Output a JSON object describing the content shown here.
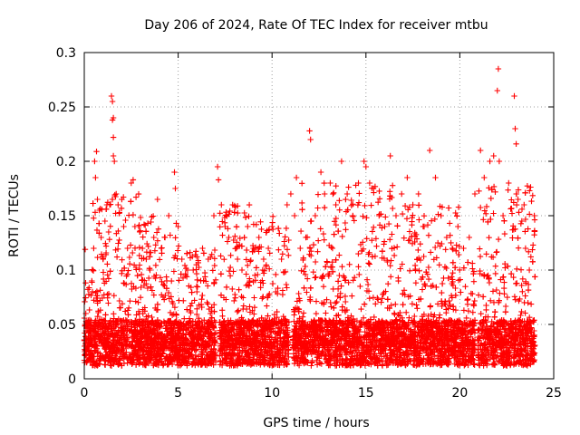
{
  "chart_data": {
    "type": "scatter",
    "title": "Day 206 of 2024, Rate Of TEC Index for receiver mtbu",
    "xlabel": "GPS time / hours",
    "ylabel": "ROTI / TECUs",
    "xlim": [
      0,
      25
    ],
    "ylim": [
      0,
      0.3
    ],
    "xticks": [
      0,
      5,
      10,
      15,
      20,
      25
    ],
    "xtick_labels": [
      "0",
      "5",
      "10",
      "15",
      "20",
      "25"
    ],
    "yticks": [
      0,
      0.05,
      0.1,
      0.15,
      0.2,
      0.25,
      0.3
    ],
    "ytick_labels": [
      "0",
      "0.05",
      "0.1",
      "0.15",
      "0.2",
      "0.25",
      "0.3"
    ],
    "grid": true,
    "marker": "plus",
    "series_color": "#ff0000",
    "series": [
      {
        "points": [
          [
            0.05,
            0.119
          ],
          [
            0.1,
            0.022
          ],
          [
            0.2,
            0.035
          ],
          [
            0.3,
            0.05
          ],
          [
            0.4,
            0.09
          ],
          [
            0.5,
            0.12
          ],
          [
            0.55,
            0.2
          ],
          [
            0.6,
            0.185
          ],
          [
            0.65,
            0.209
          ],
          [
            0.7,
            0.165
          ],
          [
            0.8,
            0.155
          ],
          [
            0.9,
            0.13
          ],
          [
            1.0,
            0.11
          ],
          [
            1.1,
            0.145
          ],
          [
            1.2,
            0.16
          ],
          [
            1.3,
            0.135
          ],
          [
            1.45,
            0.26
          ],
          [
            1.5,
            0.255
          ],
          [
            1.5,
            0.238
          ],
          [
            1.55,
            0.24
          ],
          [
            1.55,
            0.222
          ],
          [
            1.55,
            0.205
          ],
          [
            1.6,
            0.2
          ],
          [
            1.7,
            0.17
          ],
          [
            1.8,
            0.16
          ],
          [
            2.0,
            0.165
          ],
          [
            2.1,
            0.14
          ],
          [
            2.3,
            0.12
          ],
          [
            2.5,
            0.18
          ],
          [
            2.6,
            0.183
          ],
          [
            2.7,
            0.14
          ],
          [
            2.9,
            0.14
          ],
          [
            3.1,
            0.12
          ],
          [
            3.3,
            0.11
          ],
          [
            3.5,
            0.1
          ],
          [
            3.7,
            0.13
          ],
          [
            3.9,
            0.165
          ],
          [
            4.1,
            0.12
          ],
          [
            4.3,
            0.13
          ],
          [
            4.5,
            0.15
          ],
          [
            4.8,
            0.19
          ],
          [
            4.85,
            0.175
          ],
          [
            4.9,
            0.143
          ],
          [
            5.0,
            0.14
          ],
          [
            5.2,
            0.11
          ],
          [
            5.5,
            0.1
          ],
          [
            5.8,
            0.1
          ],
          [
            6.0,
            0.08
          ],
          [
            6.3,
            0.12
          ],
          [
            6.6,
            0.11
          ],
          [
            6.9,
            0.15
          ],
          [
            7.1,
            0.195
          ],
          [
            7.15,
            0.183
          ],
          [
            7.3,
            0.16
          ],
          [
            7.5,
            0.14
          ],
          [
            7.7,
            0.13
          ],
          [
            7.9,
            0.16
          ],
          [
            8.1,
            0.12
          ],
          [
            8.4,
            0.1
          ],
          [
            8.7,
            0.14
          ],
          [
            9.0,
            0.12
          ],
          [
            9.3,
            0.13
          ],
          [
            9.5,
            0.1
          ],
          [
            9.8,
            0.12
          ],
          [
            10.0,
            0.14
          ],
          [
            10.2,
            0.08
          ],
          [
            10.5,
            0.11
          ],
          [
            10.8,
            0.16
          ],
          [
            11.0,
            0.17
          ],
          [
            11.2,
            0.15
          ],
          [
            11.3,
            0.185
          ],
          [
            11.5,
            0.12
          ],
          [
            11.8,
            0.13
          ],
          [
            12.0,
            0.228
          ],
          [
            12.05,
            0.22
          ],
          [
            12.3,
            0.15
          ],
          [
            12.6,
            0.19
          ],
          [
            12.8,
            0.17
          ],
          [
            13.1,
            0.18
          ],
          [
            13.4,
            0.16
          ],
          [
            13.7,
            0.2
          ],
          [
            14.0,
            0.17
          ],
          [
            14.3,
            0.15
          ],
          [
            14.6,
            0.18
          ],
          [
            14.9,
            0.2
          ],
          [
            15.0,
            0.195
          ],
          [
            15.2,
            0.18
          ],
          [
            15.4,
            0.175
          ],
          [
            15.7,
            0.15
          ],
          [
            16.0,
            0.14
          ],
          [
            16.3,
            0.205
          ],
          [
            16.6,
            0.15
          ],
          [
            16.9,
            0.17
          ],
          [
            17.2,
            0.185
          ],
          [
            17.5,
            0.16
          ],
          [
            17.8,
            0.17
          ],
          [
            18.1,
            0.14
          ],
          [
            18.4,
            0.21
          ],
          [
            18.7,
            0.185
          ],
          [
            19.0,
            0.15
          ],
          [
            19.3,
            0.13
          ],
          [
            19.6,
            0.12
          ],
          [
            19.9,
            0.14
          ],
          [
            20.2,
            0.12
          ],
          [
            20.5,
            0.13
          ],
          [
            20.8,
            0.17
          ],
          [
            21.1,
            0.21
          ],
          [
            21.3,
            0.185
          ],
          [
            21.6,
            0.2
          ],
          [
            21.8,
            0.205
          ],
          [
            22.0,
            0.265
          ],
          [
            22.05,
            0.285
          ],
          [
            22.1,
            0.2
          ],
          [
            22.3,
            0.15
          ],
          [
            22.6,
            0.18
          ],
          [
            22.9,
            0.26
          ],
          [
            22.95,
            0.23
          ],
          [
            23.0,
            0.216
          ],
          [
            23.1,
            0.165
          ],
          [
            23.3,
            0.145
          ],
          [
            23.5,
            0.12
          ],
          [
            23.7,
            0.1
          ],
          [
            23.9,
            0.123
          ]
        ]
      }
    ]
  }
}
